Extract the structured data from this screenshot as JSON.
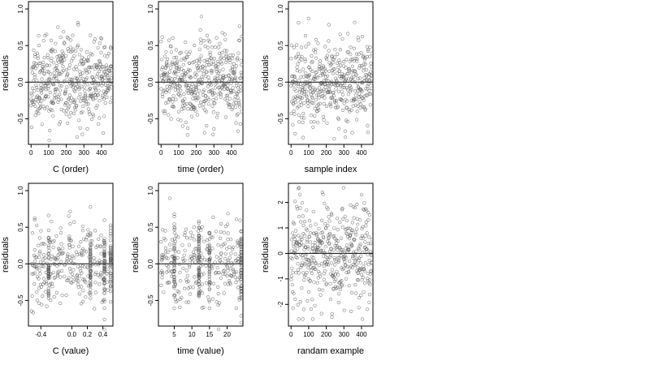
{
  "chart_data": [
    {
      "type": "scatter",
      "xlabel": "C (order)",
      "ylabel": "residuals",
      "xticks": [
        0,
        100,
        200,
        300,
        400
      ],
      "xtick_labels": [
        "0",
        "100",
        "200",
        "300",
        "400"
      ],
      "yticks": [
        -0.5,
        0.0,
        0.5,
        1.0
      ],
      "ytick_labels": [
        "-0.5",
        "0.0",
        "0.5",
        "1.0"
      ],
      "xlim": [
        -15,
        465
      ],
      "ylim": [
        -0.85,
        1.1
      ],
      "reference_line_y": 0,
      "x_mode": "index",
      "n": 460,
      "seed": 11,
      "spread": 0.28
    },
    {
      "type": "scatter",
      "xlabel": "time (order)",
      "ylabel": "residuals",
      "xticks": [
        0,
        100,
        200,
        300,
        400
      ],
      "xtick_labels": [
        "0",
        "100",
        "200",
        "300",
        "400"
      ],
      "yticks": [
        -0.5,
        0.0,
        0.5,
        1.0
      ],
      "ytick_labels": [
        "-0.5",
        "0.0",
        "0.5",
        "1.0"
      ],
      "xlim": [
        -15,
        465
      ],
      "ylim": [
        -0.85,
        1.1
      ],
      "reference_line_y": 0,
      "x_mode": "index",
      "n": 460,
      "seed": 23,
      "spread": 0.28
    },
    {
      "type": "scatter",
      "xlabel": "sample index",
      "ylabel": "residuals",
      "xticks": [
        0,
        100,
        200,
        300,
        400
      ],
      "xtick_labels": [
        "0",
        "100",
        "200",
        "300",
        "400"
      ],
      "yticks": [
        -0.5,
        0.0,
        0.5,
        1.0
      ],
      "ytick_labels": [
        "-0.5",
        "0.0",
        "0.5",
        "1.0"
      ],
      "xlim": [
        -15,
        465
      ],
      "ylim": [
        -0.85,
        1.1
      ],
      "reference_line_y": 0,
      "x_mode": "index",
      "n": 460,
      "seed": 37,
      "spread": 0.28
    },
    {
      "type": "scatter",
      "xlabel": "C (value)",
      "ylabel": "residuals",
      "xticks": [
        -0.4,
        0.0,
        0.2,
        0.4
      ],
      "xtick_labels": [
        "-0.4",
        "0.0",
        "0.2",
        "0.4"
      ],
      "yticks": [
        -0.5,
        0.0,
        0.5,
        1.0
      ],
      "ytick_labels": [
        "-0.5",
        "0.0",
        "0.5",
        "1.0"
      ],
      "xlim": [
        -0.56,
        0.53
      ],
      "ylim": [
        -0.85,
        1.1
      ],
      "reference_line_y": 0,
      "x_mode": "clustered",
      "x_range": [
        -0.52,
        0.5
      ],
      "cluster_x": [
        -0.3,
        0.24,
        0.42,
        0.5
      ],
      "n": 460,
      "seed": 41,
      "spread": 0.28
    },
    {
      "type": "scatter",
      "xlabel": "time (value)",
      "ylabel": "residuals",
      "xticks": [
        5,
        10,
        15,
        20
      ],
      "xtick_labels": [
        "5",
        "10",
        "15",
        "20"
      ],
      "yticks": [
        -0.5,
        0.0,
        0.5,
        1.0
      ],
      "ytick_labels": [
        "-0.5",
        "0.0",
        "0.5",
        "1.0"
      ],
      "xlim": [
        0.5,
        24.5
      ],
      "ylim": [
        -0.85,
        1.1
      ],
      "reference_line_y": 0,
      "x_mode": "clustered",
      "x_range": [
        1,
        24
      ],
      "cluster_x": [
        12,
        15,
        24,
        5
      ],
      "n": 460,
      "seed": 53,
      "spread": 0.28
    },
    {
      "type": "scatter",
      "xlabel": "randam example",
      "ylabel": "residuals",
      "xticks": [
        0,
        100,
        200,
        300,
        400
      ],
      "xtick_labels": [
        "0",
        "100",
        "200",
        "300",
        "400"
      ],
      "yticks": [
        -2,
        -1,
        0,
        1,
        2
      ],
      "ytick_labels": [
        "-2",
        "-1",
        "0",
        "1",
        "2"
      ],
      "xlim": [
        -15,
        465
      ],
      "ylim": [
        -2.85,
        2.75
      ],
      "reference_line_y": 0,
      "x_mode": "index",
      "n": 460,
      "seed": 67,
      "spread": 1.0
    }
  ]
}
